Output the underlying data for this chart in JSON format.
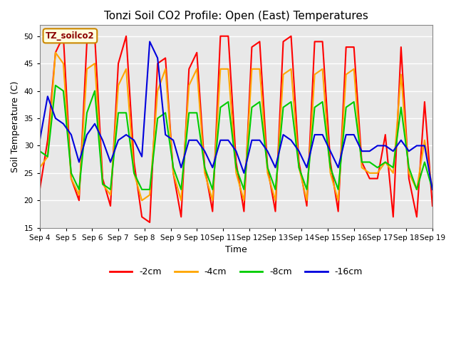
{
  "title": "Tonzi Soil CO2 Profile: Open (East) Temperatures",
  "ylabel": "Soil Temperature (C)",
  "xlabel": "Time",
  "ylim": [
    15,
    52
  ],
  "yticks": [
    15,
    20,
    25,
    30,
    35,
    40,
    45,
    50
  ],
  "plot_bg_color": "#e8e8e8",
  "grid_color": "white",
  "legend_label": "TZ_soilco2",
  "series": {
    "-2cm": {
      "color": "#ff0000",
      "linewidth": 1.5,
      "values": [
        22,
        31,
        47,
        50,
        24,
        20,
        49,
        50,
        24,
        19,
        45,
        50,
        27,
        17,
        16,
        45,
        46,
        25,
        17,
        44,
        47,
        26,
        18,
        50,
        50,
        27,
        18,
        48,
        49,
        26,
        18,
        49,
        50,
        27,
        19,
        49,
        49,
        27,
        18,
        48,
        48,
        27,
        24,
        24,
        32,
        17,
        48,
        24,
        17,
        38,
        19
      ]
    },
    "-4cm": {
      "color": "#ffa500",
      "linewidth": 1.5,
      "values": [
        26,
        28,
        47,
        45,
        24,
        21,
        44,
        45,
        23,
        21,
        41,
        44,
        25,
        20,
        21,
        40,
        44,
        25,
        20,
        41,
        44,
        25,
        20,
        44,
        44,
        25,
        20,
        44,
        44,
        25,
        20,
        43,
        44,
        26,
        20,
        43,
        44,
        25,
        20,
        43,
        44,
        26,
        25,
        25,
        27,
        25,
        43,
        25,
        22,
        31,
        22
      ]
    },
    "-8cm": {
      "color": "#00cc00",
      "linewidth": 1.5,
      "values": [
        29,
        28,
        41,
        40,
        25,
        22,
        36,
        40,
        23,
        22,
        36,
        36,
        25,
        22,
        22,
        35,
        36,
        26,
        22,
        36,
        36,
        26,
        22,
        37,
        38,
        26,
        22,
        37,
        38,
        26,
        22,
        37,
        38,
        26,
        22,
        37,
        38,
        26,
        22,
        37,
        38,
        27,
        27,
        26,
        27,
        26,
        37,
        26,
        22,
        27,
        22
      ]
    },
    "-16cm": {
      "color": "#0000dd",
      "linewidth": 1.5,
      "values": [
        31,
        39,
        35,
        34,
        32,
        27,
        32,
        34,
        31,
        27,
        31,
        32,
        31,
        28,
        49,
        46,
        32,
        31,
        26,
        31,
        31,
        29,
        26,
        31,
        31,
        29,
        25,
        31,
        31,
        29,
        26,
        32,
        31,
        29,
        26,
        32,
        32,
        29,
        26,
        32,
        32,
        29,
        29,
        30,
        30,
        29,
        31,
        29,
        30,
        30,
        22
      ]
    }
  },
  "x_tick_labels": [
    "Sep 4",
    "Sep 5",
    "Sep 6",
    "Sep 7",
    "Sep 8",
    "Sep 9",
    "Sep 10",
    "Sep 11",
    "Sep 12",
    "Sep 13",
    "Sep 14",
    "Sep 15",
    "Sep 16",
    "Sep 17",
    "Sep 18",
    "Sep 19"
  ],
  "total_days": 15,
  "n_ticks": 16
}
